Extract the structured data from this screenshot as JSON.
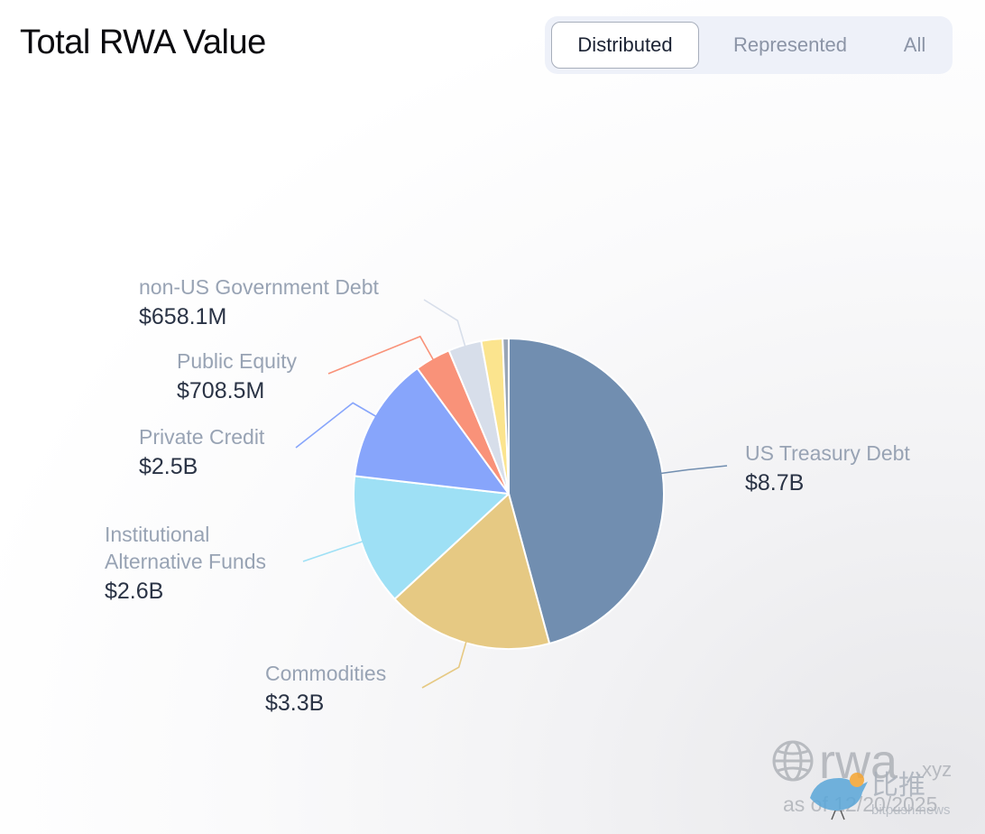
{
  "header": {
    "title": "Total RWA Value"
  },
  "toggle": {
    "options": [
      "Distributed",
      "Represented",
      "All"
    ],
    "active_index": 0
  },
  "chart_data": {
    "type": "pie",
    "title": "Total RWA Value",
    "slices": [
      {
        "name": "US Treasury Debt",
        "value_label": "$8.7B",
        "value": 8.7,
        "color": "#718eb0"
      },
      {
        "name": "Commodities",
        "value_label": "$3.3B",
        "value": 3.3,
        "color": "#e6c983"
      },
      {
        "name": "Institutional Alternative Funds",
        "name_lines": [
          "Institutional",
          "Alternative Funds"
        ],
        "value_label": "$2.6B",
        "value": 2.6,
        "color": "#9ee0f5"
      },
      {
        "name": "Private Credit",
        "value_label": "$2.5B",
        "value": 2.5,
        "color": "#87a5fb"
      },
      {
        "name": "Public Equity",
        "value_label": "$708.5M",
        "value": 0.7085,
        "color": "#f99279"
      },
      {
        "name": "non-US Government Debt",
        "value_label": "$658.1M",
        "value": 0.6581,
        "color": "#d7deea"
      },
      {
        "name": "",
        "value_label": "",
        "value": 0.42,
        "color": "#fbe48e"
      },
      {
        "name": "",
        "value_label": "",
        "value": 0.12,
        "color": "#9aa6b6"
      }
    ]
  },
  "watermark": {
    "brand": "rwa",
    "brand_suffix": ".xyz",
    "as_of": "as of 12/20/2025",
    "overlay_cn": "比推",
    "overlay_domain": "bitpush.news"
  }
}
